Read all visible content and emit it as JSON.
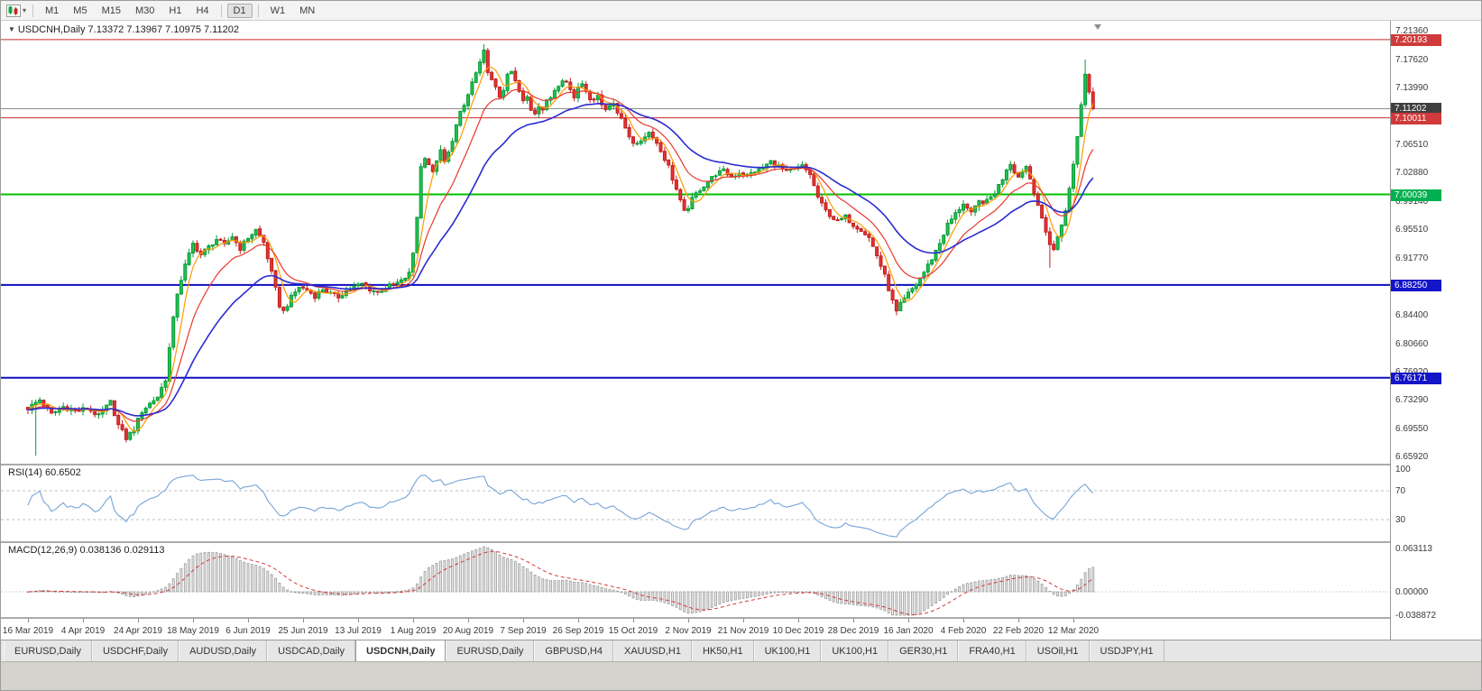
{
  "toolbar": {
    "timeframes": [
      "M1",
      "M5",
      "M15",
      "M30",
      "H1",
      "H4",
      "D1",
      "W1",
      "MN"
    ],
    "active": "D1"
  },
  "chart": {
    "title_line": "USDCNH,Daily  7.13372 7.13967 7.10975 7.11202",
    "price_axis_labels": [
      "7.21360",
      "7.17620",
      "7.13990",
      "7.06510",
      "7.02880",
      "6.99140",
      "6.95510",
      "6.91770",
      "6.84400",
      "6.80660",
      "6.76920",
      "6.73290",
      "6.69550",
      "6.65920"
    ],
    "price_badges": [
      {
        "text": "7.20193",
        "color": "#d03a3a"
      },
      {
        "text": "7.11202",
        "color": "#3f3f3f"
      },
      {
        "text": "7.10011",
        "color": "#d03a3a"
      },
      {
        "text": "7.00039",
        "color": "#00b050"
      },
      {
        "text": "6.88250",
        "color": "#1414c8"
      },
      {
        "text": "6.76171",
        "color": "#1414c8"
      }
    ]
  },
  "rsi": {
    "label": "RSI(14) 60.6502",
    "axis_labels": [
      "100",
      "70",
      "30"
    ]
  },
  "macd": {
    "label": "MACD(12,26,9) 0.038136 0.029113",
    "axis_labels": [
      "0.063113",
      "0.00000",
      "-0.038872"
    ]
  },
  "date_axis": [
    "16 Mar 2019",
    "4 Apr 2019",
    "24 Apr 2019",
    "18 May 2019",
    "6 Jun 2019",
    "25 Jun 2019",
    "13 Jul 2019",
    "1 Aug 2019",
    "20 Aug 2019",
    "7 Sep 2019",
    "26 Sep 2019",
    "15 Oct 2019",
    "2 Nov 2019",
    "21 Nov 2019",
    "10 Dec 2019",
    "28 Dec 2019",
    "16 Jan 2020",
    "4 Feb 2020",
    "22 Feb 2020",
    "12 Mar 2020"
  ],
  "tabs": [
    {
      "label": "EURUSD,Daily"
    },
    {
      "label": "USDCHF,Daily"
    },
    {
      "label": "AUDUSD,Daily"
    },
    {
      "label": "USDCAD,Daily"
    },
    {
      "label": "USDCNH,Daily",
      "active": true
    },
    {
      "label": "EURUSD,Daily"
    },
    {
      "label": "GBPUSD,H4"
    },
    {
      "label": "XAUUSD,H1"
    },
    {
      "label": "HK50,H1"
    },
    {
      "label": "UK100,H1"
    },
    {
      "label": "UK100,H1"
    },
    {
      "label": "GER30,H1"
    },
    {
      "label": "FRA40,H1"
    },
    {
      "label": "USOil,H1"
    },
    {
      "label": "USDJPY,H1"
    }
  ],
  "chart_data": {
    "type": "candlestick",
    "symbol": "USDCNH",
    "timeframe": "Daily",
    "bars": 272,
    "y_range": [
      6.6592,
      7.2136
    ],
    "x_first_date": "16 Mar 2019",
    "x_last_date": "20 Mar 2020",
    "last_bar_ohlc": [
      7.13372,
      7.13967,
      7.10975,
      7.11202
    ],
    "noise_amp": 0.006,
    "wick_amp": 0.006,
    "close_anchors": [
      [
        0,
        6.722
      ],
      [
        3,
        6.733
      ],
      [
        6,
        6.714
      ],
      [
        9,
        6.724
      ],
      [
        12,
        6.718
      ],
      [
        15,
        6.722
      ],
      [
        18,
        6.712
      ],
      [
        21,
        6.73
      ],
      [
        23,
        6.7
      ],
      [
        25,
        6.683
      ],
      [
        27,
        6.695
      ],
      [
        29,
        6.718
      ],
      [
        31,
        6.728
      ],
      [
        33,
        6.737
      ],
      [
        35,
        6.76
      ],
      [
        36,
        6.8
      ],
      [
        37,
        6.838
      ],
      [
        38,
        6.872
      ],
      [
        40,
        6.908
      ],
      [
        42,
        6.936
      ],
      [
        44,
        6.922
      ],
      [
        46,
        6.932
      ],
      [
        48,
        6.942
      ],
      [
        50,
        6.934
      ],
      [
        52,
        6.946
      ],
      [
        54,
        6.93
      ],
      [
        56,
        6.944
      ],
      [
        58,
        6.954
      ],
      [
        60,
        6.938
      ],
      [
        62,
        6.898
      ],
      [
        64,
        6.856
      ],
      [
        65,
        6.848
      ],
      [
        67,
        6.866
      ],
      [
        69,
        6.88
      ],
      [
        71,
        6.876
      ],
      [
        73,
        6.868
      ],
      [
        75,
        6.877
      ],
      [
        77,
        6.871
      ],
      [
        79,
        6.867
      ],
      [
        81,
        6.875
      ],
      [
        83,
        6.88
      ],
      [
        85,
        6.884
      ],
      [
        87,
        6.877
      ],
      [
        89,
        6.873
      ],
      [
        91,
        6.879
      ],
      [
        93,
        6.883
      ],
      [
        95,
        6.887
      ],
      [
        97,
        6.897
      ],
      [
        98,
        6.924
      ],
      [
        99,
        6.972
      ],
      [
        100,
        7.036
      ],
      [
        101,
        7.05
      ],
      [
        102,
        7.04
      ],
      [
        103,
        7.028
      ],
      [
        104,
        7.046
      ],
      [
        105,
        7.056
      ],
      [
        106,
        7.042
      ],
      [
        107,
        7.054
      ],
      [
        108,
        7.072
      ],
      [
        109,
        7.09
      ],
      [
        110,
        7.106
      ],
      [
        111,
        7.116
      ],
      [
        112,
        7.13
      ],
      [
        113,
        7.146
      ],
      [
        114,
        7.158
      ],
      [
        115,
        7.17
      ],
      [
        116,
        7.186
      ],
      [
        117,
        7.162
      ],
      [
        118,
        7.148
      ],
      [
        119,
        7.138
      ],
      [
        120,
        7.128
      ],
      [
        121,
        7.138
      ],
      [
        122,
        7.154
      ],
      [
        123,
        7.16
      ],
      [
        124,
        7.147
      ],
      [
        125,
        7.134
      ],
      [
        126,
        7.121
      ],
      [
        127,
        7.127
      ],
      [
        128,
        7.111
      ],
      [
        129,
        7.107
      ],
      [
        130,
        7.117
      ],
      [
        131,
        7.111
      ],
      [
        132,
        7.121
      ],
      [
        133,
        7.127
      ],
      [
        134,
        7.137
      ],
      [
        135,
        7.144
      ],
      [
        136,
        7.151
      ],
      [
        137,
        7.147
      ],
      [
        138,
        7.137
      ],
      [
        139,
        7.127
      ],
      [
        140,
        7.141
      ],
      [
        141,
        7.147
      ],
      [
        142,
        7.137
      ],
      [
        143,
        7.121
      ],
      [
        144,
        7.127
      ],
      [
        145,
        7.131
      ],
      [
        146,
        7.117
      ],
      [
        147,
        7.111
      ],
      [
        148,
        7.117
      ],
      [
        149,
        7.121
      ],
      [
        150,
        7.107
      ],
      [
        151,
        7.097
      ],
      [
        152,
        7.087
      ],
      [
        153,
        7.077
      ],
      [
        154,
        7.069
      ],
      [
        155,
        7.064
      ],
      [
        156,
        7.071
      ],
      [
        157,
        7.077
      ],
      [
        158,
        7.081
      ],
      [
        159,
        7.077
      ],
      [
        160,
        7.067
      ],
      [
        161,
        7.057
      ],
      [
        162,
        7.047
      ],
      [
        163,
        7.037
      ],
      [
        164,
        7.021
      ],
      [
        165,
        7.007
      ],
      [
        166,
        6.991
      ],
      [
        167,
        6.977
      ],
      [
        168,
        6.984
      ],
      [
        169,
        6.994
      ],
      [
        170,
        7.001
      ],
      [
        171,
        7.007
      ],
      [
        173,
        7.017
      ],
      [
        175,
        7.027
      ],
      [
        177,
        7.031
      ],
      [
        179,
        7.023
      ],
      [
        181,
        7.029
      ],
      [
        183,
        7.025
      ],
      [
        185,
        7.031
      ],
      [
        187,
        7.035
      ],
      [
        189,
        7.043
      ],
      [
        191,
        7.037
      ],
      [
        193,
        7.029
      ],
      [
        195,
        7.033
      ],
      [
        197,
        7.037
      ],
      [
        199,
        7.027
      ],
      [
        200,
        7.011
      ],
      [
        201,
        6.997
      ],
      [
        202,
        6.987
      ],
      [
        203,
        6.979
      ],
      [
        204,
        6.974
      ],
      [
        205,
        6.969
      ],
      [
        206,
        6.965
      ],
      [
        208,
        6.971
      ],
      [
        210,
        6.961
      ],
      [
        212,
        6.955
      ],
      [
        214,
        6.944
      ],
      [
        216,
        6.921
      ],
      [
        218,
        6.894
      ],
      [
        220,
        6.861
      ],
      [
        221,
        6.847
      ],
      [
        222,
        6.857
      ],
      [
        224,
        6.871
      ],
      [
        226,
        6.884
      ],
      [
        228,
        6.899
      ],
      [
        230,
        6.917
      ],
      [
        232,
        6.937
      ],
      [
        234,
        6.961
      ],
      [
        236,
        6.975
      ],
      [
        238,
        6.989
      ],
      [
        240,
        6.975
      ],
      [
        242,
        6.991
      ],
      [
        244,
        6.991
      ],
      [
        246,
        7.003
      ],
      [
        248,
        7.021
      ],
      [
        249,
        7.034
      ],
      [
        250,
        7.041
      ],
      [
        251,
        7.031
      ],
      [
        252,
        7.023
      ],
      [
        253,
        7.031
      ],
      [
        254,
        7.037
      ],
      [
        255,
        7.021
      ],
      [
        256,
        7.004
      ],
      [
        257,
        6.987
      ],
      [
        258,
        6.967
      ],
      [
        259,
        6.951
      ],
      [
        260,
        6.937
      ],
      [
        261,
        6.929
      ],
      [
        262,
        6.944
      ],
      [
        263,
        6.961
      ],
      [
        264,
        6.981
      ],
      [
        265,
        7.007
      ],
      [
        266,
        7.039
      ],
      [
        267,
        7.077
      ],
      [
        268,
        7.117
      ],
      [
        269,
        7.158
      ],
      [
        270,
        7.134
      ],
      [
        271,
        7.11202
      ]
    ],
    "wick_overrides": [
      [
        2,
        "low",
        6.66
      ],
      [
        116,
        "high",
        7.196
      ],
      [
        221,
        "low",
        6.843
      ],
      [
        260,
        "low",
        6.905
      ],
      [
        269,
        "high",
        7.176
      ]
    ],
    "horizontal_lines": [
      {
        "price": 7.20193,
        "color": "#cc2929",
        "width": 1
      },
      {
        "price": 7.11202,
        "color": "#8c8c8c",
        "width": 1
      },
      {
        "price": 7.10011,
        "color": "#cc2929",
        "width": 1
      },
      {
        "price": 7.00039,
        "color": "#00c000",
        "width": 2
      },
      {
        "price": 6.8825,
        "color": "#0f0fc0",
        "width": 2
      },
      {
        "price": 6.76171,
        "color": "#0f0fc0",
        "width": 2
      }
    ],
    "colors": {
      "up": "#089b3a",
      "up_fill": "#23c14e",
      "down": "#c01f1f",
      "down_fill": "#e23434",
      "ma_fast": "#ff9900",
      "ma_mid": "#e8382e",
      "ma_slow": "#2b2bd0",
      "rsi": "#76a5d8",
      "macd_bar_stroke": "#9a9a9a",
      "macd_bar_fill": "#ededed",
      "macd_signal": "#d43a3a"
    },
    "indicators": {
      "ma": [
        {
          "type": "sma",
          "period": 5
        },
        {
          "type": "ema",
          "period": 13
        },
        {
          "type": "ema",
          "period": 30
        }
      ],
      "rsi": {
        "period": 14,
        "current": 60.6502,
        "levels": [
          70,
          30
        ]
      },
      "macd": {
        "fast": 12,
        "slow": 26,
        "signal": 9,
        "current": 0.038136,
        "signal_current": 0.029113
      }
    }
  }
}
